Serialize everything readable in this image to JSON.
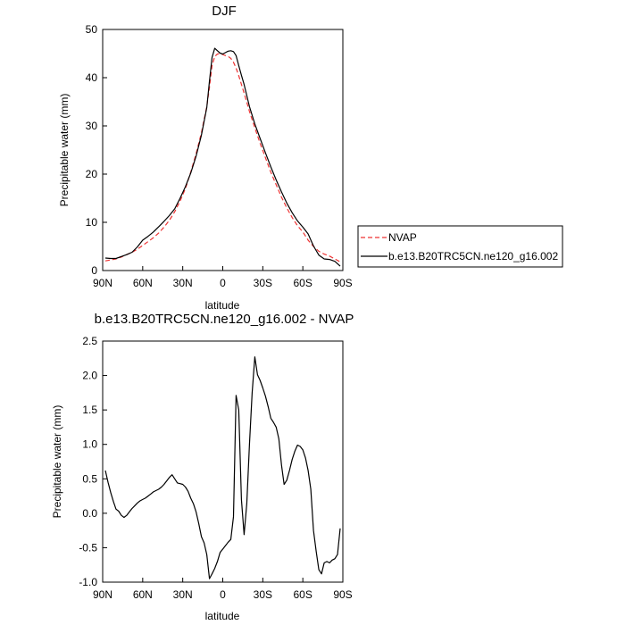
{
  "chart_data": [
    {
      "type": "line",
      "title": "DJF",
      "xlabel": "latitude",
      "ylabel": "Precipitable water (mm)",
      "xlim": [
        90,
        -90
      ],
      "ylim": [
        0,
        50
      ],
      "xticks": [
        90,
        60,
        30,
        0,
        -30,
        -60,
        -90
      ],
      "xtick_labels": [
        "90N",
        "60N",
        "30N",
        "0",
        "30S",
        "60S",
        "90S"
      ],
      "yticks": [
        0,
        10,
        20,
        30,
        40,
        50
      ],
      "ytick_labels": [
        "0",
        "10",
        "20",
        "30",
        "40",
        "50"
      ],
      "legend_position": "right",
      "series": [
        {
          "name": "NVAP",
          "color": "#ee3333",
          "style": "dashed",
          "x": [
            88,
            84,
            80,
            76,
            72,
            68,
            64,
            60,
            56,
            52,
            48,
            44,
            40,
            36,
            32,
            28,
            24,
            20,
            16,
            12,
            10,
            8,
            6,
            4,
            2,
            0,
            -2,
            -4,
            -6,
            -8,
            -10,
            -12,
            -14,
            -16,
            -20,
            -24,
            -28,
            -32,
            -36,
            -40,
            -44,
            -48,
            -52,
            -56,
            -60,
            -64,
            -68,
            -72,
            -76,
            -80,
            -84,
            -88
          ],
          "y": [
            2.0,
            2.2,
            2.4,
            2.8,
            3.3,
            3.8,
            4.4,
            5.2,
            6.0,
            6.8,
            7.8,
            9.0,
            10.4,
            12.2,
            14.4,
            17.0,
            20.4,
            24.2,
            28.6,
            34.0,
            38.0,
            42.5,
            44.4,
            44.9,
            45.0,
            44.8,
            44.6,
            44.4,
            44.0,
            43.2,
            42.0,
            40.4,
            38.6,
            36.8,
            33.0,
            29.6,
            26.4,
            23.4,
            20.4,
            17.8,
            15.2,
            13.0,
            11.0,
            9.3,
            8.0,
            6.3,
            5.0,
            4.0,
            3.4,
            3.0,
            2.4,
            1.8
          ]
        },
        {
          "name": "b.e13.B20TRC5CN.ne120_g16.002",
          "color": "#000000",
          "style": "solid",
          "x": [
            88,
            84,
            80,
            76,
            72,
            68,
            64,
            60,
            56,
            52,
            48,
            44,
            40,
            36,
            32,
            28,
            24,
            20,
            16,
            12,
            10,
            8,
            6,
            4,
            2,
            0,
            -2,
            -4,
            -6,
            -8,
            -10,
            -12,
            -14,
            -16,
            -20,
            -24,
            -28,
            -32,
            -36,
            -40,
            -44,
            -48,
            -52,
            -56,
            -60,
            -64,
            -68,
            -72,
            -76,
            -80,
            -84,
            -88
          ],
          "y": [
            2.6,
            2.5,
            2.5,
            2.9,
            3.3,
            3.8,
            4.9,
            6.3,
            7.1,
            8.0,
            9.1,
            10.2,
            11.4,
            12.8,
            15.0,
            17.4,
            20.2,
            23.7,
            28.1,
            33.8,
            39.3,
            44.2,
            46.1,
            45.6,
            45.1,
            44.9,
            45.2,
            45.5,
            45.6,
            45.4,
            44.6,
            42.5,
            40.5,
            38.6,
            34.0,
            30.4,
            27.4,
            24.4,
            21.5,
            18.8,
            16.3,
            14.0,
            12.0,
            10.3,
            9.0,
            7.6,
            5.1,
            3.2,
            2.4,
            2.3,
            1.9,
            0.9
          ]
        }
      ]
    },
    {
      "type": "line",
      "title": "b.e13.B20TRC5CN.ne120_g16.002 - NVAP",
      "xlabel": "latitude",
      "ylabel": "Precipitable water (mm)",
      "xlim": [
        90,
        -90
      ],
      "ylim": [
        -1.0,
        2.5
      ],
      "xticks": [
        90,
        60,
        30,
        0,
        -30,
        -60,
        -90
      ],
      "xtick_labels": [
        "90N",
        "60N",
        "30N",
        "0",
        "30S",
        "60S",
        "90S"
      ],
      "yticks": [
        -1.0,
        -0.5,
        0.0,
        0.5,
        1.0,
        1.5,
        2.0,
        2.5
      ],
      "ytick_labels": [
        "-1.0",
        "-0.5",
        "0.0",
        "0.5",
        "1.0",
        "1.5",
        "2.0",
        "2.5"
      ],
      "series": [
        {
          "name": "b.e13.B20TRC5CN.ne120_g16.002 - NVAP",
          "color": "#000000",
          "style": "solid",
          "x": [
            88,
            86,
            84,
            82,
            80,
            78,
            76,
            74,
            72,
            70,
            68,
            66,
            64,
            62,
            60,
            58,
            56,
            54,
            52,
            50,
            48,
            46,
            44,
            42,
            40,
            38,
            36,
            34,
            32,
            30,
            28,
            26,
            24,
            22,
            20,
            18,
            16,
            14,
            12,
            10,
            8,
            6,
            4,
            2,
            0,
            -2,
            -4,
            -6,
            -8,
            -10,
            -12,
            -14,
            -16,
            -18,
            -20,
            -22,
            -24,
            -26,
            -28,
            -30,
            -32,
            -34,
            -36,
            -38,
            -40,
            -42,
            -44,
            -46,
            -48,
            -50,
            -52,
            -54,
            -56,
            -58,
            -60,
            -62,
            -64,
            -66,
            -68,
            -70,
            -72,
            -74,
            -76,
            -78,
            -80,
            -82,
            -84,
            -86,
            -88
          ],
          "y": [
            0.62,
            0.45,
            0.3,
            0.17,
            0.06,
            0.03,
            -0.03,
            -0.06,
            -0.03,
            0.02,
            0.07,
            0.11,
            0.15,
            0.18,
            0.2,
            0.22,
            0.25,
            0.28,
            0.31,
            0.33,
            0.35,
            0.38,
            0.42,
            0.47,
            0.52,
            0.56,
            0.5,
            0.44,
            0.43,
            0.42,
            0.38,
            0.32,
            0.22,
            0.14,
            0.02,
            -0.15,
            -0.34,
            -0.43,
            -0.6,
            -0.95,
            -0.88,
            -0.8,
            -0.7,
            -0.57,
            -0.52,
            -0.47,
            -0.42,
            -0.38,
            -0.05,
            1.71,
            1.5,
            0.2,
            -0.31,
            0.14,
            1.0,
            1.75,
            2.27,
            2.01,
            1.93,
            1.82,
            1.7,
            1.55,
            1.38,
            1.32,
            1.25,
            1.08,
            0.7,
            0.42,
            0.48,
            0.62,
            0.78,
            0.9,
            0.99,
            0.97,
            0.92,
            0.8,
            0.62,
            0.35,
            -0.25,
            -0.55,
            -0.82,
            -0.88,
            -0.72,
            -0.7,
            -0.72,
            -0.68,
            -0.66,
            -0.6,
            -0.22
          ]
        }
      ]
    }
  ]
}
